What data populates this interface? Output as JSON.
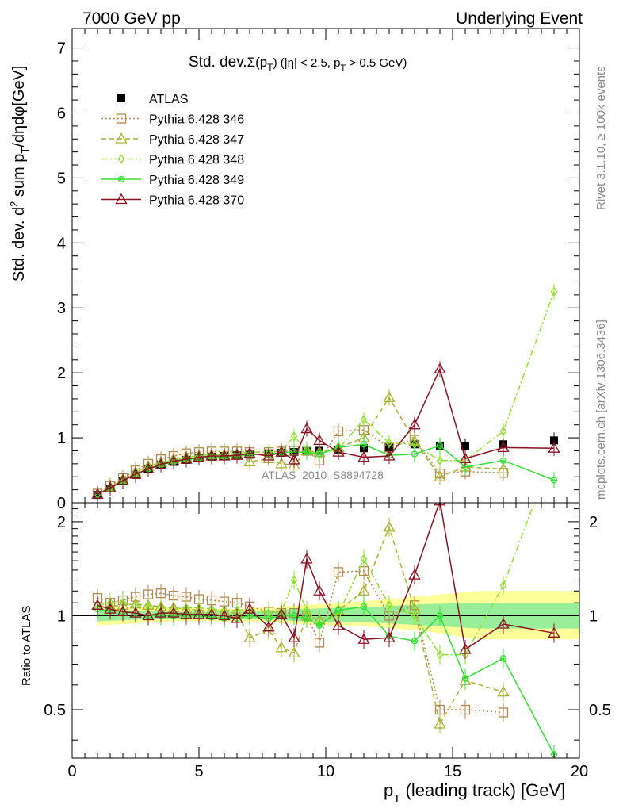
{
  "header": {
    "left": "7000 GeV pp",
    "right": "Underlying Event"
  },
  "side_labels": {
    "rivet": "Rivet 3.1.10, ≥ 100k events",
    "mcplots": "mcplots.cern.ch [arXiv:1306.3436]"
  },
  "watermark": "ATLAS_2010_S8894728",
  "colors": {
    "atlas": "#000000",
    "p346": "#b08850",
    "p347": "#a8b030",
    "p348": "#90e030",
    "p349": "#30e030",
    "p370": "#8b1020",
    "band_outer": "#ffff99",
    "band_inner": "#99ee99"
  },
  "chart_data": [
    {
      "type": "line",
      "title": "Std. dev.Σ(p_T) (|η| < 2.5, p_T > 0.5 GeV)",
      "title_parts": {
        "main": "Std. dev.",
        "sigma": "Σ(p",
        "sub": "T",
        "rest": ") (|η| < 2.5, p",
        "sub2": "T",
        "rest2": " > 0.5 GeV)"
      },
      "ylabel": "Std. dev. d² sum p_T/dηdφ[GeV]",
      "xlim": [
        0,
        20
      ],
      "ylim": [
        0,
        7.3
      ],
      "y_ticks": [
        "0",
        "1",
        "2",
        "3",
        "4",
        "5",
        "6",
        "7"
      ],
      "legend_position": "top-left",
      "series": [
        {
          "name": "ATLAS",
          "marker": "square-filled",
          "line": "none",
          "x": [
            1.0,
            1.5,
            2.0,
            2.5,
            3.0,
            3.5,
            4.0,
            4.5,
            5.0,
            5.5,
            6.0,
            6.5,
            7.0,
            7.75,
            8.25,
            8.75,
            9.25,
            9.75,
            10.5,
            11.5,
            12.5,
            13.5,
            14.5,
            15.5,
            17.0,
            19.0
          ],
          "y": [
            0.12,
            0.22,
            0.33,
            0.43,
            0.52,
            0.58,
            0.63,
            0.66,
            0.69,
            0.71,
            0.72,
            0.73,
            0.74,
            0.76,
            0.77,
            0.78,
            0.79,
            0.8,
            0.82,
            0.84,
            0.85,
            0.9,
            0.88,
            0.87,
            0.9,
            0.96
          ]
        },
        {
          "name": "Pythia 6.428 346",
          "marker": "square-open",
          "line": "dotted",
          "x": [
            1.0,
            1.5,
            2.0,
            2.5,
            3.0,
            3.5,
            4.0,
            4.5,
            5.0,
            5.5,
            6.0,
            6.5,
            7.0,
            7.75,
            8.25,
            8.75,
            9.25,
            9.75,
            10.5,
            11.5,
            12.5,
            13.5,
            14.5,
            15.5,
            17.0
          ],
          "y": [
            0.14,
            0.26,
            0.38,
            0.5,
            0.6,
            0.67,
            0.72,
            0.76,
            0.78,
            0.79,
            0.79,
            0.79,
            0.78,
            0.78,
            0.79,
            0.8,
            0.8,
            0.65,
            1.1,
            1.12,
            0.85,
            0.97,
            0.45,
            0.48,
            0.46
          ]
        },
        {
          "name": "Pythia 6.428 347",
          "marker": "triangle-open",
          "line": "dashed",
          "x": [
            1.0,
            1.5,
            2.0,
            2.5,
            3.0,
            3.5,
            4.0,
            4.5,
            5.0,
            5.5,
            6.0,
            6.5,
            7.0,
            7.75,
            8.25,
            8.75,
            9.25,
            9.75,
            10.5,
            11.5,
            12.5,
            13.5,
            14.5,
            15.5,
            17.0
          ],
          "y": [
            0.13,
            0.24,
            0.36,
            0.47,
            0.56,
            0.62,
            0.67,
            0.7,
            0.72,
            0.74,
            0.74,
            0.75,
            0.63,
            0.68,
            0.6,
            0.58,
            0.8,
            0.78,
            0.85,
            1.0,
            1.62,
            0.95,
            0.4,
            0.55,
            0.52
          ]
        },
        {
          "name": "Pythia 6.428 348",
          "marker": "diamond-open",
          "line": "dash-dot",
          "x": [
            1.0,
            1.5,
            2.0,
            2.5,
            3.0,
            3.5,
            4.0,
            4.5,
            5.0,
            5.5,
            6.0,
            6.5,
            7.0,
            7.75,
            8.25,
            8.75,
            9.25,
            9.75,
            10.5,
            11.5,
            12.5,
            13.5,
            14.5,
            15.5,
            17.0,
            19.0
          ],
          "y": [
            0.13,
            0.24,
            0.36,
            0.46,
            0.55,
            0.61,
            0.66,
            0.7,
            0.73,
            0.74,
            0.75,
            0.76,
            0.78,
            0.78,
            0.8,
            1.02,
            0.82,
            0.75,
            0.83,
            1.28,
            0.92,
            0.9,
            0.65,
            0.65,
            1.1,
            3.25
          ]
        },
        {
          "name": "Pythia 6.428 349",
          "marker": "circle-cross-open",
          "line": "solid",
          "x": [
            1.0,
            1.5,
            2.0,
            2.5,
            3.0,
            3.5,
            4.0,
            4.5,
            5.0,
            5.5,
            6.0,
            6.5,
            7.0,
            7.75,
            8.25,
            8.75,
            9.25,
            9.75,
            10.5,
            11.5,
            12.5,
            13.5,
            14.5,
            15.5,
            17.0,
            19.0
          ],
          "y": [
            0.13,
            0.23,
            0.34,
            0.44,
            0.52,
            0.58,
            0.63,
            0.66,
            0.69,
            0.7,
            0.71,
            0.72,
            0.74,
            0.75,
            0.77,
            0.78,
            0.78,
            0.75,
            0.85,
            0.9,
            0.73,
            0.75,
            0.88,
            0.55,
            0.65,
            0.35
          ]
        },
        {
          "name": "Pythia 6.428 370",
          "marker": "triangle-open",
          "line": "solid",
          "x": [
            1.0,
            1.5,
            2.0,
            2.5,
            3.0,
            3.5,
            4.0,
            4.5,
            5.0,
            5.5,
            6.0,
            6.5,
            7.0,
            7.75,
            8.25,
            8.75,
            9.25,
            9.75,
            10.5,
            11.5,
            12.5,
            13.5,
            14.5,
            15.5,
            17.0,
            19.0
          ],
          "y": [
            0.13,
            0.23,
            0.34,
            0.44,
            0.52,
            0.59,
            0.64,
            0.67,
            0.7,
            0.72,
            0.72,
            0.73,
            0.76,
            0.72,
            0.78,
            0.66,
            1.14,
            0.96,
            0.78,
            0.7,
            0.72,
            1.2,
            2.06,
            0.68,
            0.85,
            0.84
          ]
        }
      ]
    },
    {
      "type": "line",
      "ylabel": "Ratio to ATLAS",
      "xlabel": "p_T (leading track) [GeV]",
      "xlabel_parts": {
        "p": "p",
        "sub": "T",
        "rest": " (leading track) [GeV]"
      },
      "xlim": [
        0,
        20
      ],
      "ylim": [
        0.35,
        2.3
      ],
      "x_ticks": [
        "0",
        "5",
        "10",
        "15",
        "20"
      ],
      "y_ticks": [
        "0.5",
        "1",
        "2"
      ],
      "reference_line": 1.0,
      "band_outer": {
        "x": [
          1.0,
          4.0,
          6.5,
          9.0,
          12.0,
          14.0,
          16.0,
          20.0
        ],
        "lo": [
          0.93,
          0.96,
          0.96,
          0.94,
          0.92,
          0.89,
          0.84,
          0.84
        ],
        "hi": [
          1.07,
          1.06,
          1.05,
          1.08,
          1.12,
          1.16,
          1.2,
          1.2
        ]
      },
      "band_inner": {
        "x": [
          1.0,
          4.0,
          6.5,
          9.0,
          12.0,
          14.0,
          16.0,
          20.0
        ],
        "lo": [
          0.96,
          0.98,
          0.98,
          0.96,
          0.95,
          0.93,
          0.91,
          0.91
        ],
        "hi": [
          1.04,
          1.03,
          1.03,
          1.05,
          1.07,
          1.09,
          1.1,
          1.1
        ]
      },
      "series": [
        {
          "name": "Pythia 6.428 346",
          "x": [
            1.0,
            1.5,
            2.0,
            2.5,
            3.0,
            3.5,
            4.0,
            4.5,
            5.0,
            5.5,
            6.0,
            6.5,
            7.0,
            7.75,
            8.25,
            8.75,
            9.25,
            9.75,
            10.5,
            11.5,
            12.5,
            13.5,
            14.5,
            15.5,
            17.0
          ],
          "y": [
            1.14,
            1.1,
            1.12,
            1.15,
            1.17,
            1.18,
            1.16,
            1.15,
            1.13,
            1.12,
            1.11,
            1.1,
            1.07,
            1.03,
            1.02,
            1.02,
            1.0,
            0.82,
            1.38,
            1.39,
            1.0,
            1.08,
            0.5,
            0.5,
            0.49
          ]
        },
        {
          "name": "Pythia 6.428 347",
          "x": [
            1.0,
            1.5,
            2.0,
            2.5,
            3.0,
            3.5,
            4.0,
            4.5,
            5.0,
            5.5,
            6.0,
            6.5,
            7.0,
            7.75,
            8.25,
            8.75,
            9.25,
            9.75,
            10.5,
            11.5,
            12.5,
            13.5,
            14.5,
            15.5,
            17.0
          ],
          "y": [
            1.08,
            1.07,
            1.08,
            1.09,
            1.08,
            1.07,
            1.06,
            1.05,
            1.04,
            1.04,
            1.03,
            1.02,
            0.85,
            0.9,
            0.79,
            0.76,
            1.0,
            0.97,
            1.04,
            1.2,
            1.92,
            1.05,
            0.45,
            0.62,
            0.57
          ]
        },
        {
          "name": "Pythia 6.428 348",
          "x": [
            1.0,
            1.5,
            2.0,
            2.5,
            3.0,
            3.5,
            4.0,
            4.5,
            5.0,
            5.5,
            6.0,
            6.5,
            7.0,
            7.75,
            8.25,
            8.75,
            9.25,
            9.75,
            10.5,
            11.5,
            12.5,
            13.5,
            14.5,
            15.5,
            17.0,
            19.0
          ],
          "y": [
            1.08,
            1.1,
            1.1,
            1.08,
            1.07,
            1.06,
            1.05,
            1.06,
            1.06,
            1.05,
            1.04,
            1.04,
            1.05,
            1.02,
            1.03,
            1.3,
            1.04,
            0.94,
            1.01,
            1.52,
            1.08,
            1.0,
            0.75,
            0.75,
            1.25,
            3.4
          ]
        },
        {
          "name": "Pythia 6.428 349",
          "x": [
            1.0,
            1.5,
            2.0,
            2.5,
            3.0,
            3.5,
            4.0,
            4.5,
            5.0,
            5.5,
            6.0,
            6.5,
            7.0,
            7.75,
            8.25,
            8.75,
            9.25,
            9.75,
            10.5,
            11.5,
            12.5,
            13.5,
            14.5,
            15.5,
            17.0,
            19.0
          ],
          "y": [
            1.05,
            1.04,
            1.03,
            1.02,
            1.0,
            1.0,
            1.0,
            1.0,
            1.0,
            0.99,
            0.98,
            0.98,
            1.0,
            0.98,
            1.0,
            1.0,
            0.98,
            0.93,
            1.04,
            1.07,
            0.86,
            0.83,
            1.0,
            0.63,
            0.73,
            0.36
          ]
        },
        {
          "name": "Pythia 6.428 370",
          "x": [
            1.0,
            1.5,
            2.0,
            2.5,
            3.0,
            3.5,
            4.0,
            4.5,
            5.0,
            5.5,
            6.0,
            6.5,
            7.0,
            7.75,
            8.25,
            8.75,
            9.25,
            9.75,
            10.5,
            11.5,
            12.5,
            13.5,
            14.5,
            15.5,
            17.0,
            19.0
          ],
          "y": [
            1.08,
            1.05,
            1.03,
            1.02,
            1.0,
            1.02,
            1.02,
            1.01,
            1.01,
            1.01,
            1.0,
            0.98,
            1.05,
            0.92,
            1.01,
            0.85,
            1.52,
            1.2,
            0.93,
            0.84,
            0.85,
            1.35,
            2.33,
            0.78,
            0.94,
            0.88
          ]
        }
      ]
    }
  ]
}
